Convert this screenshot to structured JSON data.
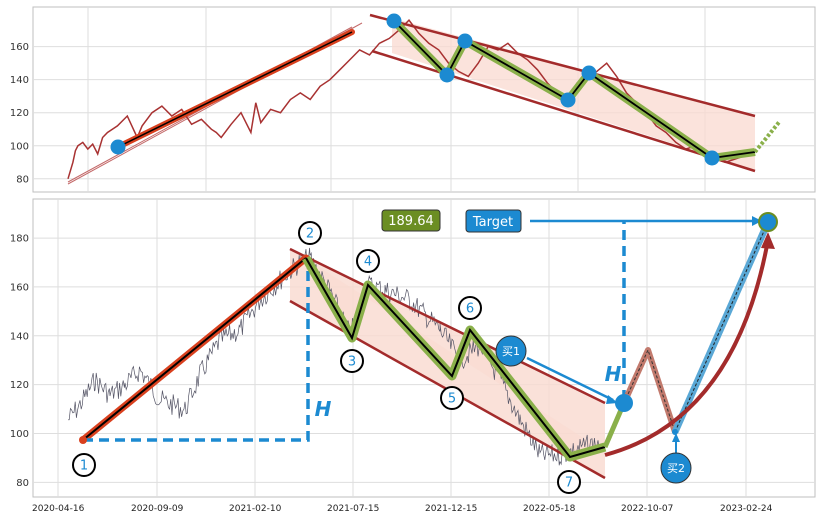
{
  "chart_data": [
    {
      "type": "line",
      "panel": "top",
      "ylim": [
        72,
        184
      ],
      "yticks": [
        80,
        100,
        120,
        140,
        160
      ],
      "grid": true,
      "series": [
        {
          "color": "#a83232",
          "values": [
            [
              0,
              80
            ],
            [
              0.01,
              90
            ],
            [
              0.015,
              97
            ],
            [
              0.02,
              100
            ],
            [
              0.03,
              102
            ],
            [
              0.04,
              98
            ],
            [
              0.05,
              101
            ],
            [
              0.06,
              95
            ],
            [
              0.07,
              105
            ],
            [
              0.08,
              108
            ],
            [
              0.1,
              112
            ],
            [
              0.12,
              118
            ],
            [
              0.14,
              105
            ],
            [
              0.15,
              112
            ],
            [
              0.17,
              120
            ],
            [
              0.19,
              124
            ],
            [
              0.21,
              118
            ],
            [
              0.23,
              122
            ],
            [
              0.25,
              113
            ],
            [
              0.27,
              116
            ],
            [
              0.29,
              110
            ],
            [
              0.3,
              108
            ],
            [
              0.31,
              105
            ],
            [
              0.33,
              113
            ],
            [
              0.35,
              120
            ],
            [
              0.37,
              108
            ],
            [
              0.38,
              126
            ],
            [
              0.39,
              114
            ],
            [
              0.41,
              122
            ],
            [
              0.43,
              120
            ],
            [
              0.45,
              128
            ],
            [
              0.47,
              132
            ],
            [
              0.49,
              128
            ],
            [
              0.51,
              136
            ],
            [
              0.53,
              140
            ],
            [
              0.55,
              146
            ],
            [
              0.57,
              152
            ],
            [
              0.59,
              158
            ],
            [
              0.61,
              155
            ],
            [
              0.63,
              162
            ],
            [
              0.65,
              165
            ],
            [
              0.67,
              170
            ],
            [
              0.69,
              176
            ],
            [
              0.71,
              168
            ],
            [
              0.73,
              162
            ],
            [
              0.75,
              158
            ],
            [
              0.77,
              150
            ],
            [
              0.79,
              145
            ],
            [
              0.81,
              142
            ],
            [
              0.83,
              150
            ],
            [
              0.85,
              160
            ],
            [
              0.87,
              158
            ],
            [
              0.89,
              162
            ],
            [
              0.91,
              156
            ],
            [
              0.93,
              152
            ],
            [
              0.95,
              146
            ],
            [
              0.97,
              138
            ],
            [
              0.99,
              132
            ],
            [
              1.01,
              128
            ],
            [
              1.03,
              138
            ],
            [
              1.05,
              140
            ],
            [
              1.07,
              145
            ],
            [
              1.09,
              150
            ],
            [
              1.11,
              142
            ],
            [
              1.13,
              132
            ],
            [
              1.15,
              126
            ],
            [
              1.17,
              120
            ],
            [
              1.19,
              112
            ],
            [
              1.21,
              108
            ],
            [
              1.23,
              102
            ],
            [
              1.25,
              98
            ],
            [
              1.27,
              100
            ],
            [
              1.29,
              96
            ],
            [
              1.31,
              92
            ],
            [
              1.33,
              90
            ],
            [
              1.35,
              92
            ],
            [
              1.37,
              94
            ],
            [
              1.39,
              95
            ]
          ]
        }
      ]
    },
    {
      "type": "line",
      "panel": "bottom",
      "ylim": [
        74,
        196
      ],
      "yticks": [
        80,
        100,
        120,
        140,
        160,
        180
      ],
      "x_dates": [
        "2020-04-16",
        "2020-09-09",
        "2021-02-10",
        "2021-07-15",
        "2021-12-15",
        "2022-05-18",
        "2022-10-07",
        "2023-02-24"
      ],
      "grid": true,
      "annotations": {
        "wave_labels": [
          "1",
          "2",
          "3",
          "4",
          "5",
          "6",
          "7"
        ],
        "target_value": "189.64",
        "target_label": "Target",
        "buy1_label": "买1",
        "buy2_label": "买2",
        "height_label": "H"
      },
      "wave_points": [
        [
          0,
          97
        ],
        [
          1,
          175
        ],
        [
          2,
          141
        ],
        [
          3,
          163
        ],
        [
          4,
          126
        ],
        [
          5,
          142
        ],
        [
          6,
          90
        ],
        [
          7,
          94
        ]
      ],
      "projection": [
        [
          7,
          94
        ],
        [
          8,
          113
        ],
        [
          9,
          136
        ],
        [
          10,
          100
        ],
        [
          11,
          190
        ]
      ]
    }
  ],
  "colors": {
    "price_top": "#a83232",
    "price_bottom": "#555566",
    "channel": "#a32b2b",
    "channel_fill": "#f9d9d0",
    "wave": "#000000",
    "wave_glow": "#8ab04a",
    "uptrend": "#d9401e",
    "marker": "#1c8ad1",
    "dashed": "#1c8ad1",
    "target_box": "#1c8ad1",
    "value_box": "#6b8e23",
    "curve": "#a32b2b"
  }
}
